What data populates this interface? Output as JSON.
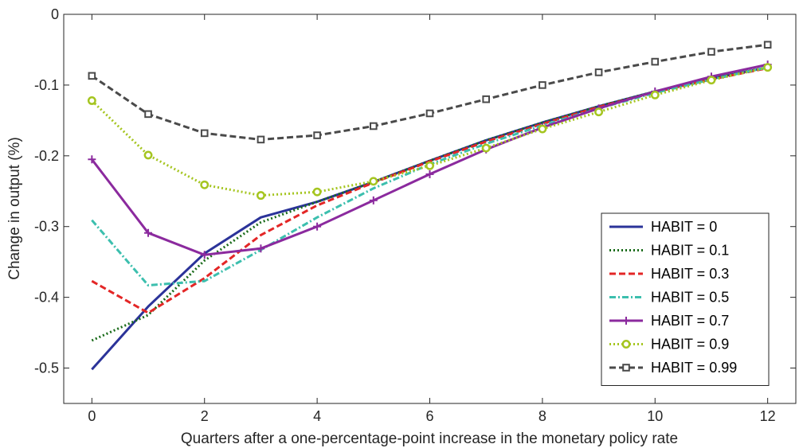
{
  "chart_data": {
    "type": "line",
    "title": "",
    "xlabel": "Quarters after a one-percentage-point increase in the monetary policy rate",
    "ylabel": "Change in output (%)",
    "xlim": [
      -0.5,
      12.5
    ],
    "ylim": [
      -0.55,
      0
    ],
    "xticks": [
      0,
      2,
      4,
      6,
      8,
      10,
      12
    ],
    "yticks": [
      0,
      -0.1,
      -0.2,
      -0.3,
      -0.4,
      -0.5
    ],
    "xtick_labels": [
      "0",
      "2",
      "4",
      "6",
      "8",
      "10",
      "12"
    ],
    "ytick_labels": [
      "0",
      "-0.1",
      "-0.2",
      "-0.3",
      "-0.4",
      "-0.5"
    ],
    "grid": false,
    "legend_position": "lower-right",
    "x": [
      0,
      1,
      2,
      3,
      4,
      5,
      6,
      7,
      8,
      9,
      10,
      11,
      12
    ],
    "series": [
      {
        "name": "HABIT = 0",
        "color": "#2b3399",
        "dash": "solid",
        "marker": "none",
        "values": [
          -0.502,
          -0.413,
          -0.338,
          -0.287,
          -0.265,
          -0.237,
          -0.207,
          -0.178,
          -0.153,
          -0.13,
          -0.109,
          -0.091,
          -0.075
        ]
      },
      {
        "name": "HABIT = 0.1",
        "color": "#1a6b1a",
        "dash": "dotted",
        "marker": "none",
        "values": [
          -0.461,
          -0.425,
          -0.348,
          -0.294,
          -0.265,
          -0.237,
          -0.207,
          -0.178,
          -0.153,
          -0.13,
          -0.109,
          -0.091,
          -0.075
        ]
      },
      {
        "name": "HABIT = 0.3",
        "color": "#e32626",
        "dash": "dashed",
        "marker": "none",
        "values": [
          -0.377,
          -0.422,
          -0.373,
          -0.312,
          -0.27,
          -0.238,
          -0.208,
          -0.18,
          -0.155,
          -0.131,
          -0.11,
          -0.092,
          -0.076
        ]
      },
      {
        "name": "HABIT = 0.5",
        "color": "#3cbfae",
        "dash": "dashdot",
        "marker": "none",
        "values": [
          -0.291,
          -0.383,
          -0.377,
          -0.333,
          -0.287,
          -0.246,
          -0.212,
          -0.183,
          -0.157,
          -0.133,
          -0.111,
          -0.092,
          -0.075
        ]
      },
      {
        "name": "HABIT = 0.7",
        "color": "#8b2a9e",
        "dash": "solid",
        "marker": "plus",
        "values": [
          -0.205,
          -0.309,
          -0.34,
          -0.331,
          -0.3,
          -0.263,
          -0.226,
          -0.191,
          -0.16,
          -0.133,
          -0.109,
          -0.088,
          -0.071
        ]
      },
      {
        "name": "HABIT = 0.9",
        "color": "#a5c520",
        "dash": "dotted",
        "marker": "circle",
        "values": [
          -0.122,
          -0.199,
          -0.241,
          -0.256,
          -0.251,
          -0.236,
          -0.214,
          -0.189,
          -0.162,
          -0.138,
          -0.114,
          -0.093,
          -0.075
        ]
      },
      {
        "name": "HABIT = 0.99",
        "color": "#4a4a4a",
        "dash": "dashed",
        "marker": "square",
        "values": [
          -0.087,
          -0.141,
          -0.168,
          -0.177,
          -0.171,
          -0.158,
          -0.14,
          -0.12,
          -0.1,
          -0.082,
          -0.067,
          -0.053,
          -0.043
        ]
      }
    ]
  }
}
